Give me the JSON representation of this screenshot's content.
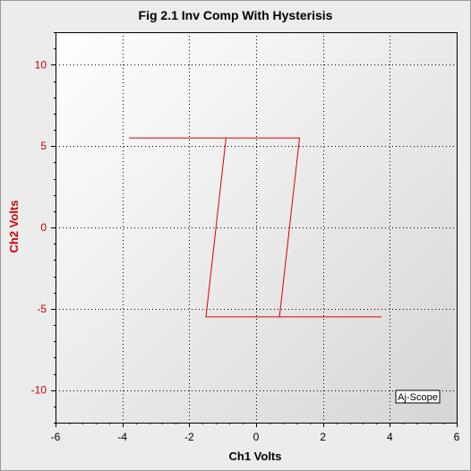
{
  "chart_data": {
    "type": "line",
    "title": "Fig 2.1 Inv Comp With Hysterisis",
    "xlabel": "Ch1 Volts",
    "ylabel": "Ch2 Volts",
    "xlim": [
      -6,
      6
    ],
    "ylim": [
      -12,
      12
    ],
    "xticks": [
      -6,
      -4,
      -2,
      0,
      2,
      4,
      6
    ],
    "yticks": [
      10,
      5,
      0,
      -5,
      -10
    ],
    "grid": true,
    "series": [
      {
        "color": "#dd0000",
        "x": [
          -3.8,
          1.3,
          0.7,
          3.75,
          -1.5,
          -0.9,
          -3.8
        ],
        "y": [
          5.5,
          5.5,
          -5.5,
          -5.5,
          -5.5,
          5.5,
          5.5
        ]
      }
    ],
    "watermark": "Aj-Scope"
  },
  "colors": {
    "trace": "#dd0000",
    "ylabel": "#cc0000",
    "axis": "#000000"
  }
}
